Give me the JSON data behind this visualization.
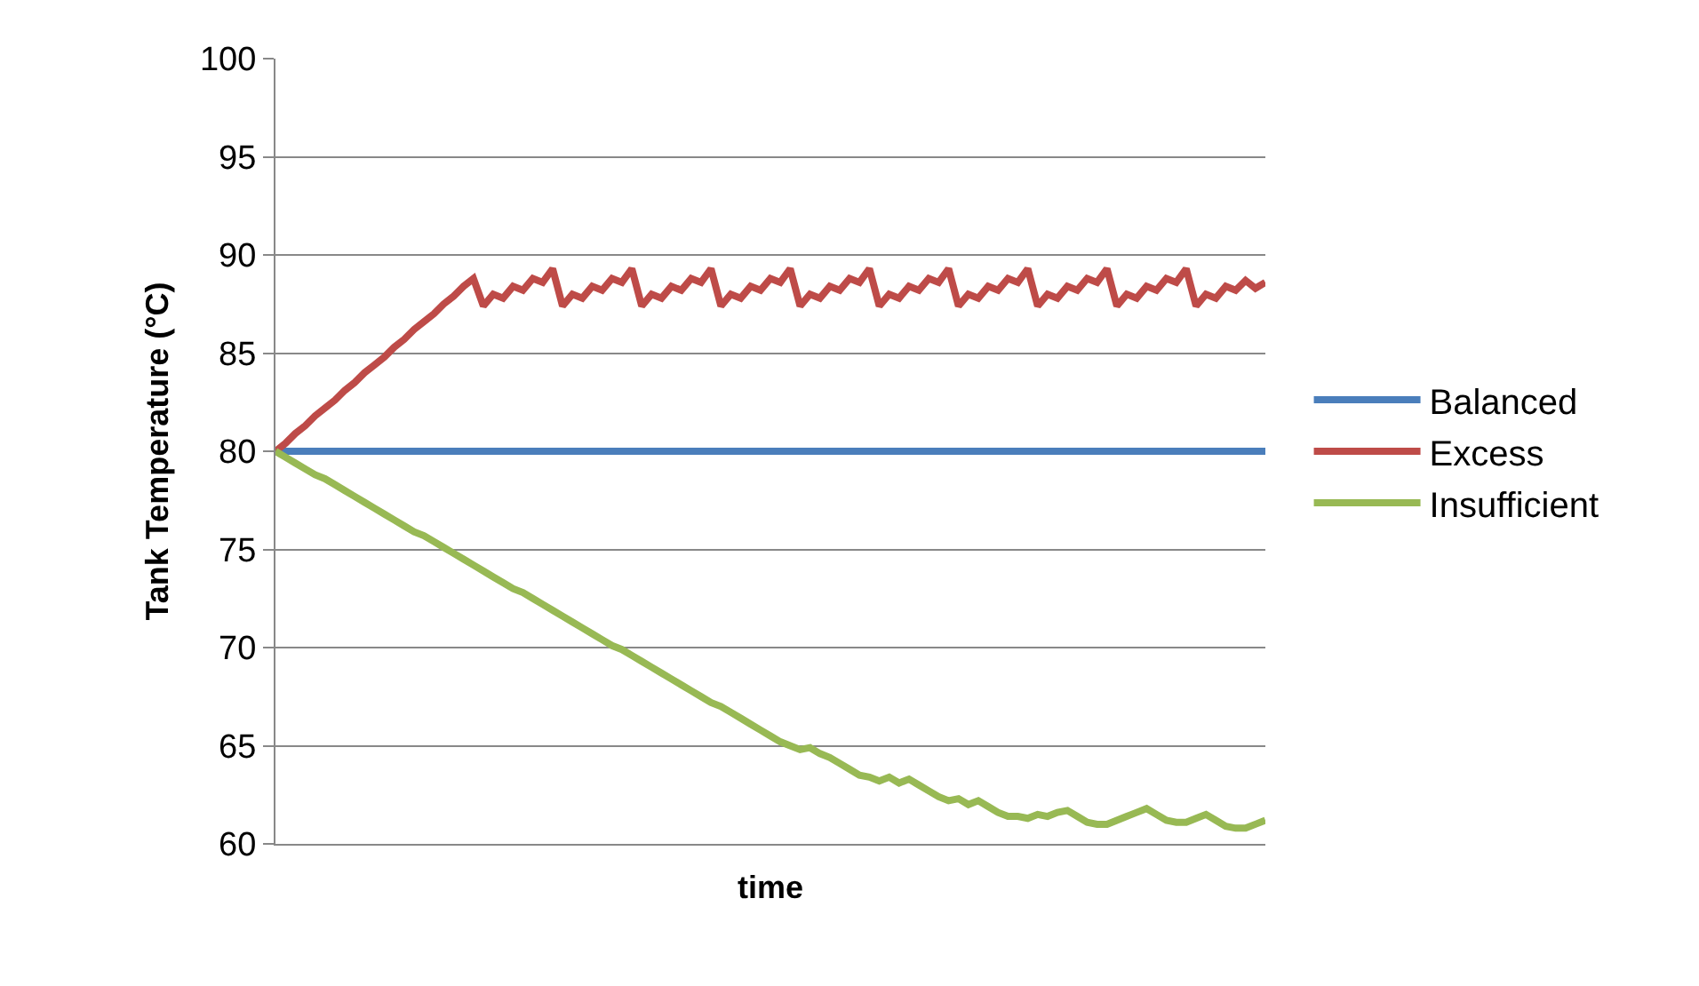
{
  "chart_data": {
    "type": "line",
    "ylabel": "Tank Temperature (°C)",
    "xlabel": "time",
    "categories": [
      null,
      null,
      null,
      null,
      null,
      null,
      null,
      null,
      null,
      null,
      null,
      null,
      null,
      null,
      null,
      null,
      null,
      null,
      null,
      null,
      null,
      null,
      null,
      null,
      null,
      null,
      null,
      null,
      null,
      null,
      null,
      null,
      null,
      null,
      null,
      null,
      null,
      null,
      null,
      null,
      null,
      null,
      null,
      null,
      null,
      null,
      null,
      null,
      null,
      null,
      null,
      null,
      null,
      null,
      null,
      null,
      null,
      null,
      null,
      null,
      null,
      null,
      null,
      null,
      null,
      null,
      null,
      null,
      null,
      null,
      null,
      null,
      null,
      null,
      null,
      null,
      null,
      null,
      null,
      null,
      null,
      null,
      null,
      null,
      null,
      null,
      null,
      null,
      null,
      null,
      null,
      null,
      null,
      null,
      null,
      null,
      null,
      null,
      null,
      null,
      null
    ],
    "series": [
      {
        "name": "Balanced",
        "color": "#4a7ebb",
        "values": [
          80,
          80,
          80,
          80,
          80,
          80,
          80,
          80,
          80,
          80,
          80,
          80,
          80,
          80,
          80,
          80,
          80,
          80,
          80,
          80,
          80,
          80,
          80,
          80,
          80,
          80,
          80,
          80,
          80,
          80,
          80,
          80,
          80,
          80,
          80,
          80,
          80,
          80,
          80,
          80,
          80,
          80,
          80,
          80,
          80,
          80,
          80,
          80,
          80,
          80,
          80,
          80,
          80,
          80,
          80,
          80,
          80,
          80,
          80,
          80,
          80,
          80,
          80,
          80,
          80,
          80,
          80,
          80,
          80,
          80,
          80,
          80,
          80,
          80,
          80,
          80,
          80,
          80,
          80,
          80,
          80,
          80,
          80,
          80,
          80,
          80,
          80,
          80,
          80,
          80,
          80,
          80,
          80,
          80,
          80,
          80,
          80,
          80,
          80,
          80,
          80
        ]
      },
      {
        "name": "Excess",
        "color": "#be4b48",
        "values": [
          80.0,
          80.4,
          80.9,
          81.3,
          81.8,
          82.2,
          82.6,
          83.1,
          83.5,
          84.0,
          84.4,
          84.8,
          85.3,
          85.7,
          86.2,
          86.6,
          87.0,
          87.5,
          87.9,
          88.4,
          88.8,
          87.4,
          88.0,
          87.8,
          88.4,
          88.2,
          88.8,
          88.6,
          89.3,
          87.4,
          88.0,
          87.8,
          88.4,
          88.2,
          88.8,
          88.6,
          89.3,
          87.4,
          88.0,
          87.8,
          88.4,
          88.2,
          88.8,
          88.6,
          89.3,
          87.4,
          88.0,
          87.8,
          88.4,
          88.2,
          88.8,
          88.6,
          89.3,
          87.4,
          88.0,
          87.8,
          88.4,
          88.2,
          88.8,
          88.6,
          89.3,
          87.4,
          88.0,
          87.8,
          88.4,
          88.2,
          88.8,
          88.6,
          89.3,
          87.4,
          88.0,
          87.8,
          88.4,
          88.2,
          88.8,
          88.6,
          89.3,
          87.4,
          88.0,
          87.8,
          88.4,
          88.2,
          88.8,
          88.6,
          89.3,
          87.4,
          88.0,
          87.8,
          88.4,
          88.2,
          88.8,
          88.6,
          89.3,
          87.4,
          88.0,
          87.8,
          88.4,
          88.2,
          88.7,
          88.3,
          88.6
        ]
      },
      {
        "name": "Insufficient",
        "color": "#98b954",
        "values": [
          80.0,
          79.7,
          79.4,
          79.1,
          78.8,
          78.6,
          78.3,
          78.0,
          77.7,
          77.4,
          77.1,
          76.8,
          76.5,
          76.2,
          75.9,
          75.7,
          75.4,
          75.1,
          74.8,
          74.5,
          74.2,
          73.9,
          73.6,
          73.3,
          73.0,
          72.8,
          72.5,
          72.2,
          71.9,
          71.6,
          71.3,
          71.0,
          70.7,
          70.4,
          70.1,
          69.9,
          69.6,
          69.3,
          69.0,
          68.7,
          68.4,
          68.1,
          67.8,
          67.5,
          67.2,
          67.0,
          66.7,
          66.4,
          66.1,
          65.8,
          65.5,
          65.2,
          65.0,
          64.8,
          64.9,
          64.6,
          64.4,
          64.1,
          63.8,
          63.5,
          63.4,
          63.2,
          63.4,
          63.1,
          63.3,
          63.0,
          62.7,
          62.4,
          62.2,
          62.3,
          62.0,
          62.2,
          61.9,
          61.6,
          61.4,
          61.4,
          61.3,
          61.5,
          61.4,
          61.6,
          61.7,
          61.4,
          61.1,
          61.0,
          61.0,
          61.2,
          61.4,
          61.6,
          61.8,
          61.5,
          61.2,
          61.1,
          61.1,
          61.3,
          61.5,
          61.2,
          60.9,
          60.8,
          60.8,
          61.0,
          61.2
        ]
      }
    ],
    "ylim": [
      60,
      100
    ],
    "yticks": [
      60,
      65,
      70,
      75,
      80,
      85,
      90,
      95,
      100
    ],
    "grid": "y",
    "legend": "right",
    "marker": "none",
    "line_style": "solid",
    "tick_labels": "y"
  }
}
